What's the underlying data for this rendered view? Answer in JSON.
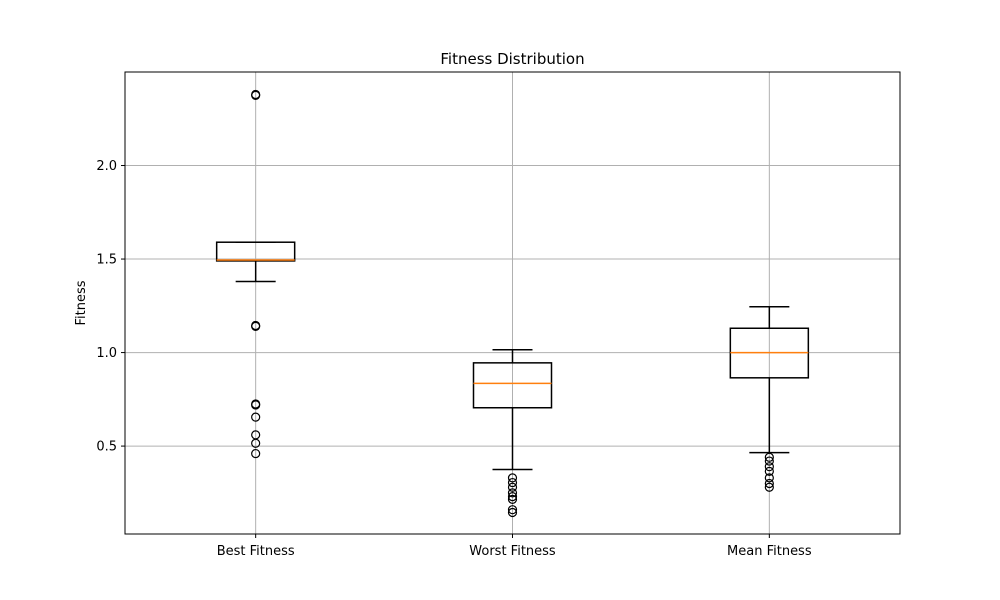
{
  "chart_data": {
    "type": "boxplot",
    "title": "Fitness Distribution",
    "xlabel": "",
    "ylabel": "Fitness",
    "ylim": [
      0.03,
      2.5
    ],
    "yticks": [
      0.5,
      1.0,
      1.5,
      2.0
    ],
    "ytick_labels": [
      "0.5",
      "1.0",
      "1.5",
      "2.0"
    ],
    "grid": true,
    "colors": {
      "box": "#000000",
      "median": "#ff7f0e",
      "grid": "#b0b0b0",
      "frame": "#000000"
    },
    "categories": [
      "Best Fitness",
      "Worst Fitness",
      "Mean Fitness"
    ],
    "boxes": [
      {
        "name": "Best Fitness",
        "whisker_low": 1.38,
        "q1": 1.49,
        "median": 1.495,
        "q3": 1.59,
        "whisker_high": 1.59,
        "outliers": [
          2.38,
          2.375,
          1.145,
          1.14,
          0.725,
          0.72,
          0.655,
          0.56,
          0.515,
          0.46
        ]
      },
      {
        "name": "Worst Fitness",
        "whisker_low": 0.375,
        "q1": 0.705,
        "median": 0.835,
        "q3": 0.945,
        "whisker_high": 1.015,
        "outliers": [
          0.33,
          0.305,
          0.28,
          0.25,
          0.23,
          0.215,
          0.16,
          0.145
        ]
      },
      {
        "name": "Mean Fitness",
        "whisker_low": 0.465,
        "q1": 0.865,
        "median": 1.0,
        "q3": 1.13,
        "whisker_high": 1.245,
        "outliers": [
          0.44,
          0.42,
          0.39,
          0.365,
          0.33,
          0.3,
          0.28
        ]
      }
    ]
  }
}
